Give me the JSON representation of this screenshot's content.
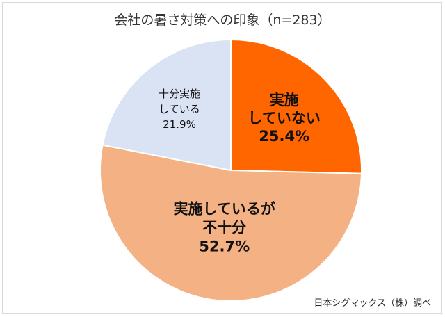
{
  "chart_data": {
    "type": "pie",
    "title": "会社の暑さ対策への印象（n=283）",
    "slices": [
      {
        "name": "実施していない",
        "lines": [
          "実施",
          "していない"
        ],
        "value": 25.4,
        "label": "25.4%",
        "color": "#ff6600"
      },
      {
        "name": "実施しているが不十分",
        "lines": [
          "実施しているが",
          "不十分"
        ],
        "value": 52.7,
        "label": "52.7%",
        "color": "#f4b183"
      },
      {
        "name": "十分実施している",
        "lines": [
          "十分実施",
          "している"
        ],
        "value": 21.9,
        "label": "21.9%",
        "color": "#dae3f3"
      }
    ],
    "start_angle_deg": 0,
    "direction": "clockwise"
  },
  "source": "日本シグマックス（株）調べ"
}
